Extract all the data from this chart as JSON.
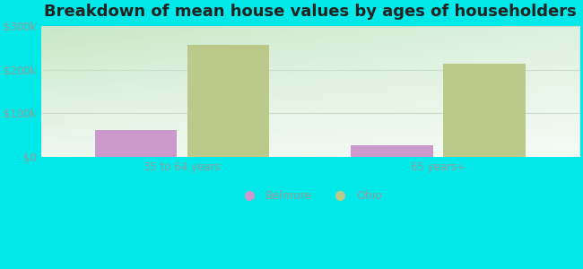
{
  "title": "Breakdown of mean house values by ages of householders",
  "categories": [
    "35 to 64 years",
    "65 years+"
  ],
  "belmore_values": [
    62000,
    27000
  ],
  "ohio_values": [
    258000,
    215000
  ],
  "belmore_color": "#cc99cc",
  "ohio_color": "#bbc98a",
  "background_color": "#00e8e8",
  "ylim": [
    0,
    300000
  ],
  "yticks": [
    0,
    100000,
    200000,
    300000
  ],
  "ytick_labels": [
    "$0",
    "$100k",
    "$200k",
    "$300k"
  ],
  "tick_color": "#999999",
  "grid_color": "#ccddcc",
  "title_fontsize": 13,
  "legend_labels": [
    "Belmore",
    "Ohio"
  ],
  "bar_width": 0.32,
  "gradient_top": "#c8e8c8",
  "gradient_bottom": "#f0f8f0"
}
